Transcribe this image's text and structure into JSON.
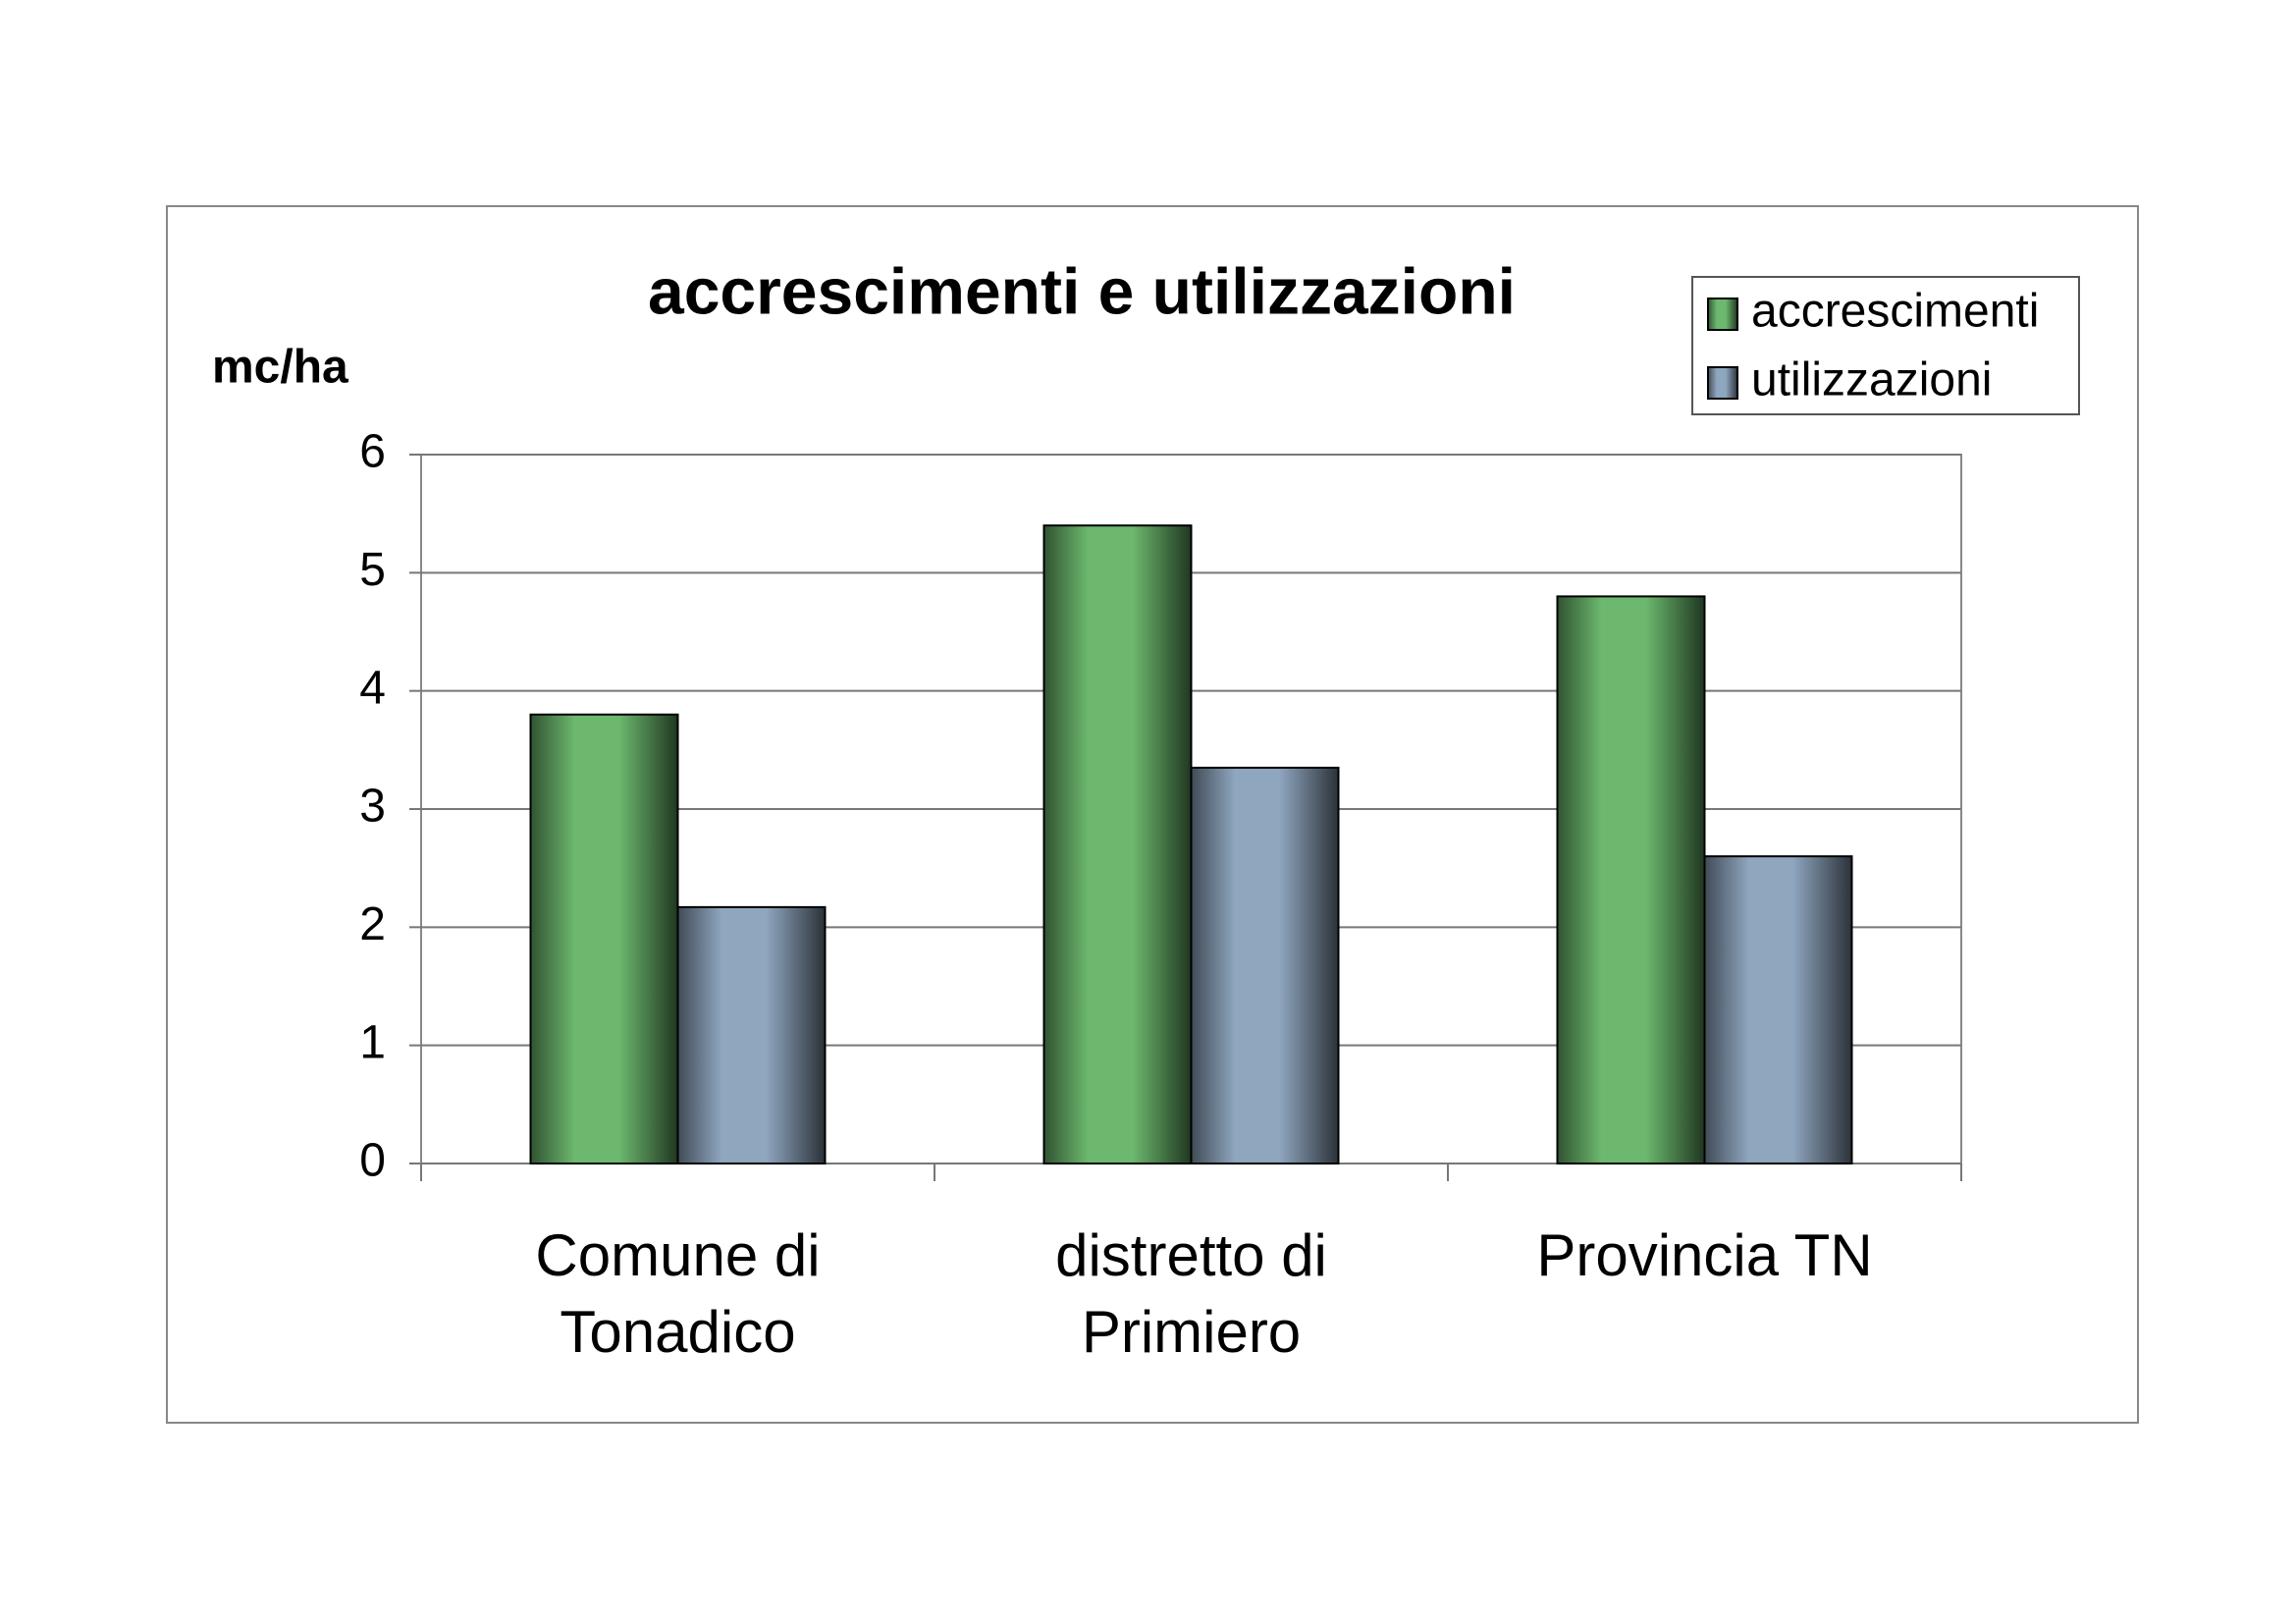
{
  "chart_data": {
    "type": "bar",
    "title": "accrescimenti e utilizzazioni",
    "y_label": "mc/ha",
    "categories": [
      "Comune di Tonadico",
      "distretto di Primiero",
      "Provincia TN"
    ],
    "series": [
      {
        "name": "accrescimenti",
        "color": "#6cb86e",
        "values": [
          3.8,
          5.4,
          4.8
        ]
      },
      {
        "name": "utilizzazioni",
        "color": "#8fa6bf",
        "values": [
          2.17,
          3.35,
          2.6
        ]
      }
    ],
    "ylim": [
      0,
      6
    ],
    "yticks": [
      0,
      1,
      2,
      3,
      4,
      5,
      6
    ],
    "grid": true,
    "legend": "top-right"
  }
}
